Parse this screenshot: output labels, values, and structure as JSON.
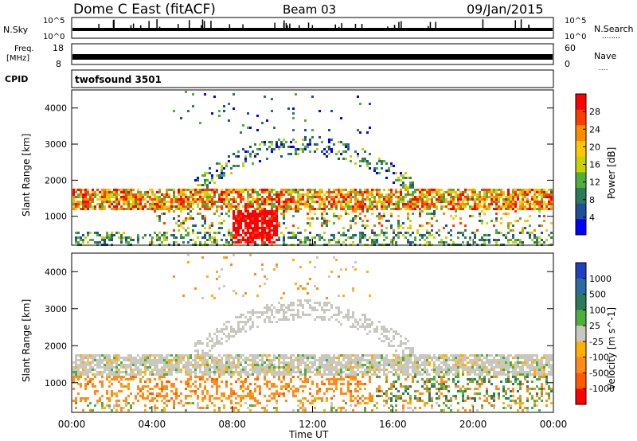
{
  "header": {
    "station": "Dome C East (fitACF)",
    "beam": "Beam 03",
    "date": "09/Jan/2015"
  },
  "top_panels": {
    "nsky_label": "N.Sky",
    "nsky_ticks": [
      "10^5",
      "10^0"
    ],
    "nsky_right_ticks": [
      "10^5",
      "10^0"
    ],
    "nsearch_label": "N.Search",
    "nsearch_dots": "........",
    "freq_label": "Freq.",
    "freq_unit": "[MHz]",
    "freq_ticks": [
      "18",
      "8"
    ],
    "nave_ticks": [
      "60",
      "0"
    ],
    "nave_label": "Nave",
    "nave_dots": "....",
    "cpid_label": "CPID",
    "cpid_value": "twofsound 3501"
  },
  "chart_data": [
    {
      "type": "heatmap",
      "panel": "power",
      "ylabel": "Slant Range [km]",
      "yticks": [
        1000,
        2000,
        3000,
        4000
      ],
      "ylim": [
        200,
        4500
      ],
      "xlim": [
        0,
        24
      ],
      "colorbar": {
        "label": "Power [dB]",
        "ticks": [
          "28",
          "24",
          "20",
          "16",
          "12",
          "8",
          "4"
        ],
        "colors": [
          "#ff0000",
          "#ff3c00",
          "#ff8c00",
          "#ffc800",
          "#c8d200",
          "#4fae3c",
          "#2c7a5a",
          "#1f4e9a",
          "#0000ff"
        ]
      },
      "features": [
        {
          "band": "primary echo band",
          "range_km": [
            1200,
            1800
          ],
          "time_ut": [
            0,
            24
          ],
          "level_db": "12-28"
        },
        {
          "band": "near range",
          "range_km": [
            250,
            600
          ],
          "time_ut": [
            0,
            24
          ],
          "level_db": "4-16"
        },
        {
          "band": "strong echo",
          "range_km": [
            300,
            1200
          ],
          "time_ut": [
            8,
            10.2
          ],
          "level_db": "28"
        },
        {
          "band": "arc",
          "range_km": [
            1800,
            3000
          ],
          "time_ut": [
            6,
            17
          ],
          "level_db": "4-16"
        }
      ]
    },
    {
      "type": "heatmap",
      "panel": "velocity",
      "ylabel": "Slant Range [km]",
      "yticks": [
        1000,
        2000,
        3000,
        4000
      ],
      "ylim": [
        200,
        4500
      ],
      "xlim": [
        0,
        24
      ],
      "colorbar": {
        "label": "Velocity [m s^-1]",
        "ticks": [
          "1000",
          "500",
          "100",
          "25",
          "-25",
          "-100",
          "-500",
          "-1000"
        ],
        "colors": [
          "#1f3fbf",
          "#2d6aa3",
          "#2c7a5a",
          "#4fae3c",
          "#c8c8c0",
          "#ffb000",
          "#ff8c1a",
          "#ff5a00",
          "#ff0000"
        ]
      },
      "features": [
        {
          "band": "ground-scatter band",
          "range_km": [
            1200,
            1800
          ],
          "time_ut": [
            0,
            24
          ],
          "velocity": "-25 to 25"
        },
        {
          "band": "orange echoes",
          "range_km": [
            600,
            1300
          ],
          "time_ut": [
            0,
            15
          ],
          "velocity": "-100 to -500"
        },
        {
          "band": "green echoes",
          "range_km": [
            500,
            1600
          ],
          "time_ut": [
            14,
            24
          ],
          "velocity": "100 to 500"
        }
      ]
    }
  ],
  "xaxis": {
    "label": "Time UT",
    "ticks": [
      "00:00",
      "04:00",
      "08:00",
      "12:00",
      "16:00",
      "20:00",
      "00:00"
    ]
  },
  "colors": {
    "power_scale": [
      "#ff0000",
      "#ff3c00",
      "#ff8c00",
      "#ffc800",
      "#c8d200",
      "#4fae3c",
      "#2c7a5a",
      "#1f4e9a",
      "#0000ff"
    ],
    "velocity_scale": [
      "#1f3fbf",
      "#2d6aa3",
      "#2c7a5a",
      "#4fae3c",
      "#c8c8c0",
      "#ffb000",
      "#ff8c1a",
      "#ff5a00",
      "#ff0000"
    ]
  }
}
